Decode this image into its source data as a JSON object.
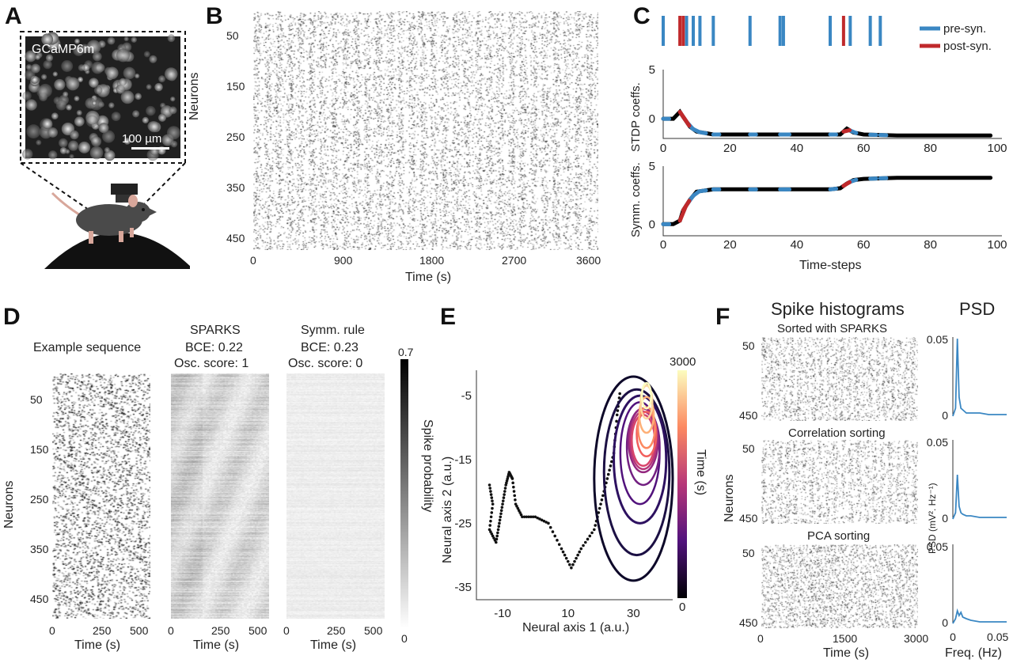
{
  "panels": {
    "a": {
      "letter": "A",
      "indicator": "GCaMP6m",
      "scalebar_label": "100 µm"
    },
    "b": {
      "letter": "B",
      "ylabel": "Neurons",
      "xlabel": "Time (s)",
      "yticks": [
        "50",
        "150",
        "250",
        "350",
        "450"
      ],
      "xticks": [
        "0",
        "900",
        "1800",
        "2700",
        "3600"
      ]
    },
    "c": {
      "letter": "C",
      "legend": {
        "pre": "pre-syn.",
        "post": "post-syn."
      },
      "top_ylabel": "STDP coeffs.",
      "bottom_ylabel": "Symm. coeffs.",
      "xlabel": "Time-steps",
      "top_yticks": [
        "5",
        "0"
      ],
      "bottom_yticks": [
        "5",
        "0"
      ],
      "xticks": [
        "0",
        "20",
        "40",
        "60",
        "80",
        "100"
      ],
      "colors": {
        "pre": "#3a87c3",
        "post": "#c0292b",
        "line": "#000000"
      }
    },
    "d": {
      "letter": "D",
      "col1_title": "Example sequence",
      "col2_title_1": "SPARKS",
      "col2_title_2": "BCE: 0.22",
      "col2_title_3": "Osc. score: 1",
      "col3_title_1": "Symm. rule",
      "col3_title_2": "BCE: 0.23",
      "col3_title_3": "Osc. score: 0",
      "ylabel": "Neurons",
      "xlabel": "Time (s)",
      "yticks": [
        "50",
        "150",
        "250",
        "350",
        "450"
      ],
      "xticks": [
        "0",
        "250",
        "500"
      ],
      "colorbar_label": "Spike probability",
      "colorbar_max": "0.7",
      "colorbar_min": "0"
    },
    "e": {
      "letter": "E",
      "xlabel": "Neural axis 1 (a.u.)",
      "ylabel": "Neural axis 2 (a.u.)",
      "xticks": [
        "-10",
        "10",
        "30"
      ],
      "yticks": [
        "-5",
        "-15",
        "-25",
        "-35"
      ],
      "colorbar_label": "Time (s)",
      "colorbar_max": "3000",
      "colorbar_min": "0"
    },
    "f": {
      "letter": "F",
      "title": "Spike histograms",
      "psd_title": "PSD",
      "rows": [
        {
          "title": "Sorted with SPARKS"
        },
        {
          "title": "Correlation sorting"
        },
        {
          "title": "PCA sorting"
        }
      ],
      "ylabel": "Neurons",
      "xlabel": "Time (s)",
      "xticks": [
        "0",
        "1500",
        "3000"
      ],
      "yticks": [
        "50",
        "450"
      ],
      "psd_ylabel": "PSD (mV². Hz⁻¹)",
      "psd_xlabel": "Freq. (Hz)",
      "psd_yticks": [
        "0.05",
        "0"
      ],
      "psd_xticks": [
        "0",
        "0.05"
      ],
      "psd_color": "#3a87c3"
    }
  },
  "chart_data": [
    {
      "type": "line",
      "title": "STDP coeffs.",
      "xlabel": "Time-steps",
      "ylabel": "STDP coeffs.",
      "xlim": [
        0,
        100
      ],
      "ylim": [
        -2,
        5
      ],
      "x": [
        0,
        3,
        5,
        6,
        8,
        10,
        15,
        20,
        30,
        40,
        50,
        53,
        55,
        57,
        60,
        70,
        80,
        90,
        98
      ],
      "y": [
        0,
        0,
        0.7,
        0.2,
        -0.8,
        -1.3,
        -1.6,
        -1.6,
        -1.6,
        -1.6,
        -1.6,
        -1.6,
        -1.0,
        -1.4,
        -1.6,
        -1.7,
        -1.7,
        -1.7,
        -1.7
      ],
      "pre_spikes": [
        0,
        7,
        9,
        11,
        15,
        26,
        35,
        36,
        50,
        56,
        62,
        65
      ],
      "post_spikes": [
        5,
        6,
        54
      ]
    },
    {
      "type": "line",
      "title": "Symm. coeffs.",
      "xlabel": "Time-steps",
      "ylabel": "Symm. coeffs.",
      "xlim": [
        0,
        100
      ],
      "ylim": [
        -1,
        5
      ],
      "x": [
        0,
        3,
        5,
        6,
        8,
        10,
        15,
        20,
        30,
        40,
        50,
        53,
        55,
        57,
        60,
        70,
        80,
        90,
        98
      ],
      "y": [
        0,
        0,
        0.3,
        1.2,
        2.1,
        2.8,
        3.0,
        3.0,
        3.0,
        3.0,
        3.0,
        3.1,
        3.5,
        3.8,
        3.9,
        4.0,
        4.0,
        4.0,
        4.0
      ]
    },
    {
      "type": "line",
      "title": "PSD - Sorted with SPARKS",
      "xlabel": "Freq. (Hz)",
      "ylabel": "PSD (mV². Hz⁻¹)",
      "xlim": [
        0,
        0.06
      ],
      "ylim": [
        0,
        0.05
      ],
      "x": [
        0,
        0.003,
        0.005,
        0.007,
        0.009,
        0.011,
        0.015,
        0.02,
        0.03,
        0.04,
        0.05,
        0.06
      ],
      "y": [
        0,
        0.005,
        0.049,
        0.012,
        0.005,
        0.004,
        0.002,
        0.002,
        0.002,
        0.001,
        0.001,
        0.001
      ]
    },
    {
      "type": "line",
      "title": "PSD - Correlation sorting",
      "xlabel": "Freq. (Hz)",
      "ylabel": "PSD (mV². Hz⁻¹)",
      "xlim": [
        0,
        0.06
      ],
      "ylim": [
        0,
        0.05
      ],
      "x": [
        0,
        0.003,
        0.005,
        0.007,
        0.009,
        0.011,
        0.015,
        0.02,
        0.03,
        0.04,
        0.05,
        0.06
      ],
      "y": [
        0,
        0.004,
        0.028,
        0.008,
        0.004,
        0.003,
        0.002,
        0.002,
        0.001,
        0.001,
        0.001,
        0.001
      ]
    },
    {
      "type": "line",
      "title": "PSD - PCA sorting",
      "xlabel": "Freq. (Hz)",
      "ylabel": "PSD (mV². Hz⁻¹)",
      "xlim": [
        0,
        0.06
      ],
      "ylim": [
        0,
        0.05
      ],
      "x": [
        0,
        0.003,
        0.005,
        0.007,
        0.009,
        0.011,
        0.015,
        0.02,
        0.03,
        0.04,
        0.05,
        0.06
      ],
      "y": [
        0,
        0.003,
        0.008,
        0.005,
        0.007,
        0.004,
        0.003,
        0.002,
        0.001,
        0.001,
        0.001,
        0.001
      ]
    }
  ]
}
